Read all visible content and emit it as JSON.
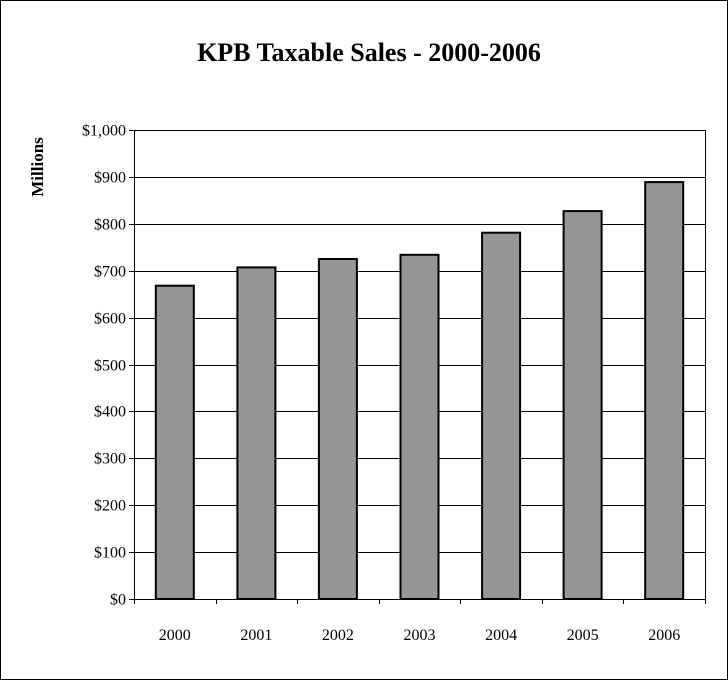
{
  "chart_data": {
    "type": "bar",
    "title": "KPB Taxable Sales - 2000-2006",
    "xlabel": "",
    "ylabel": "Millions",
    "categories": [
      "2000",
      "2001",
      "2002",
      "2003",
      "2004",
      "2005",
      "2006"
    ],
    "values": [
      668,
      707,
      725,
      734,
      781,
      827,
      889
    ],
    "ylim": [
      0,
      1000
    ],
    "ytick_values": [
      0,
      100,
      200,
      300,
      400,
      500,
      600,
      700,
      800,
      900,
      1000
    ],
    "ytick_labels": [
      "$0",
      "$100",
      "$200",
      "$300",
      "$400",
      "$500",
      "$600",
      "$700",
      "$800",
      "$900",
      "$1,000"
    ],
    "grid": true,
    "legend": "none",
    "colors": {
      "bar_fill": "#969696",
      "bar_stroke": "#000000",
      "grid": "#000000",
      "background": "#ffffff"
    }
  }
}
